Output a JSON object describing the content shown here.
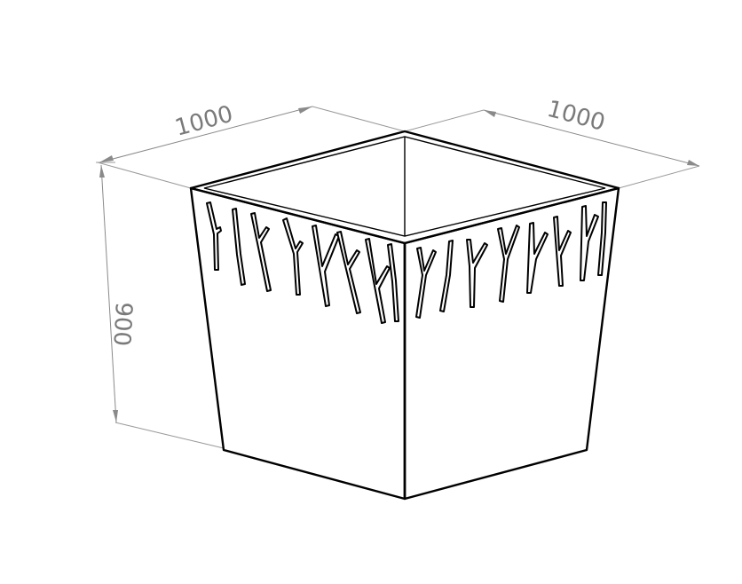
{
  "dimensions": {
    "width_left": "1000",
    "width_right": "1000",
    "height": "900"
  },
  "colors": {
    "outline": "#000000",
    "dimension": "#7a7a7a",
    "background": "#ffffff"
  }
}
